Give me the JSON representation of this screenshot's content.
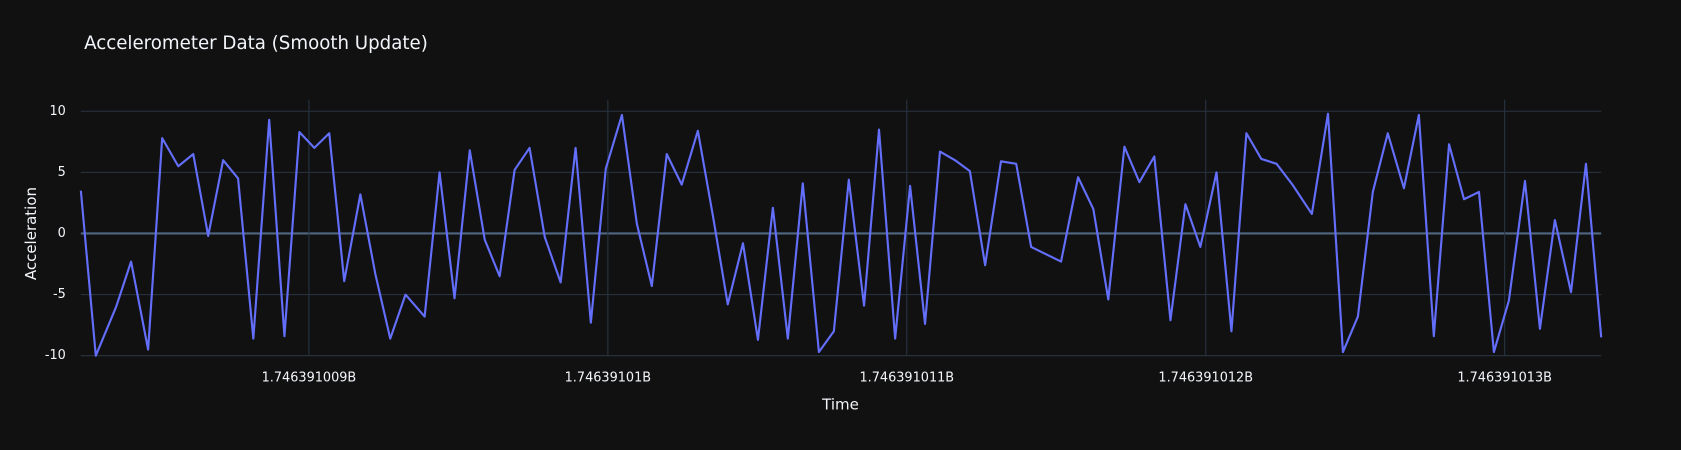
{
  "chart_data": {
    "type": "line",
    "title": "Accelerometer Data (Smooth Update)",
    "x_label": "Time",
    "y_label": "Acceleration",
    "color": "#636efa",
    "grid": true,
    "x": [
      1746391008.237,
      1746391008.287,
      1746391008.355,
      1746391008.405,
      1746391008.462,
      1746391008.509,
      1746391008.563,
      1746391008.613,
      1746391008.663,
      1746391008.713,
      1746391008.763,
      1746391008.814,
      1746391008.867,
      1746391008.918,
      1746391008.968,
      1746391009.018,
      1746391009.068,
      1746391009.118,
      1746391009.172,
      1746391009.222,
      1746391009.272,
      1746391009.323,
      1746391009.387,
      1746391009.437,
      1746391009.487,
      1746391009.538,
      1746391009.588,
      1746391009.638,
      1746391009.688,
      1746391009.738,
      1746391009.789,
      1746391009.842,
      1746391009.892,
      1746391009.943,
      1746391009.993,
      1746391010.047,
      1746391010.097,
      1746391010.147,
      1746391010.197,
      1746391010.247,
      1746391010.301,
      1746391010.351,
      1746391010.401,
      1746391010.452,
      1746391010.502,
      1746391010.552,
      1746391010.602,
      1746391010.652,
      1746391010.706,
      1746391010.756,
      1746391010.806,
      1746391010.857,
      1746391010.907,
      1746391010.961,
      1746391011.011,
      1746391011.061,
      1746391011.111,
      1746391011.161,
      1746391011.211,
      1746391011.262,
      1746391011.315,
      1746391011.366,
      1746391011.416,
      1746391011.516,
      1746391011.573,
      1746391011.624,
      1746391011.674,
      1746391011.728,
      1746391011.778,
      1746391011.828,
      1746391011.882,
      1746391011.932,
      1746391011.982,
      1746391012.036,
      1746391012.086,
      1746391012.136,
      1746391012.186,
      1746391012.237,
      1746391012.29,
      1746391012.355,
      1746391012.409,
      1746391012.459,
      1746391012.509,
      1746391012.559,
      1746391012.609,
      1746391012.663,
      1746391012.713,
      1746391012.763,
      1746391012.814,
      1746391012.864,
      1746391012.914,
      1746391012.964,
      1746391013.014,
      1746391013.068,
      1746391013.118,
      1746391013.168,
      1746391013.222,
      1746391013.272,
      1746391013.323
    ],
    "values": [
      3.5,
      -10,
      -6,
      -2.3,
      -9.5,
      7.8,
      5.5,
      6.5,
      -0.2,
      6,
      4.5,
      -8.6,
      9.3,
      -8.4,
      8.3,
      7,
      8.2,
      -3.9,
      3.2,
      -3.3,
      -8.6,
      -5,
      -6.8,
      5,
      -5.3,
      6.8,
      -0.5,
      -3.5,
      5.2,
      7,
      -0.3,
      -4,
      7,
      -7.3,
      5.3,
      9.7,
      0.8,
      -4.3,
      6.5,
      4,
      8.4,
      1.5,
      -5.8,
      -0.8,
      -8.7,
      2.1,
      -8.6,
      4.1,
      -9.7,
      -8,
      4.4,
      -5.9,
      8.5,
      -8.6,
      3.9,
      -7.4,
      6.7,
      6,
      5.1,
      -2.6,
      5.9,
      5.7,
      -1.1,
      -2.3,
      4.6,
      2,
      -5.4,
      7.1,
      4.2,
      6.3,
      -7.1,
      2.4,
      -1.1,
      5,
      -8,
      8.2,
      6.1,
      5.7,
      4,
      1.6,
      9.8,
      -9.7,
      -6.8,
      3.4,
      8.2,
      3.7,
      9.7,
      -8.4,
      7.3,
      2.8,
      3.4,
      -9.7,
      -5.5,
      4.3,
      -7.8,
      1.1,
      -4.8,
      5.7,
      -8.5
    ],
    "xlim": [
      1746391008.237,
      1746391013.323
    ],
    "xticks": [
      {
        "value": 1746391009,
        "label": "1.746391009B"
      },
      {
        "value": 1746391010,
        "label": "1.74639101B"
      },
      {
        "value": 1746391011,
        "label": "1.746391011B"
      },
      {
        "value": 1746391012,
        "label": "1.746391012B"
      },
      {
        "value": 1746391013,
        "label": "1.746391013B"
      }
    ],
    "ylim": [
      -10,
      10.95
    ],
    "yticks": [
      -10,
      -5,
      0,
      5,
      10
    ]
  }
}
